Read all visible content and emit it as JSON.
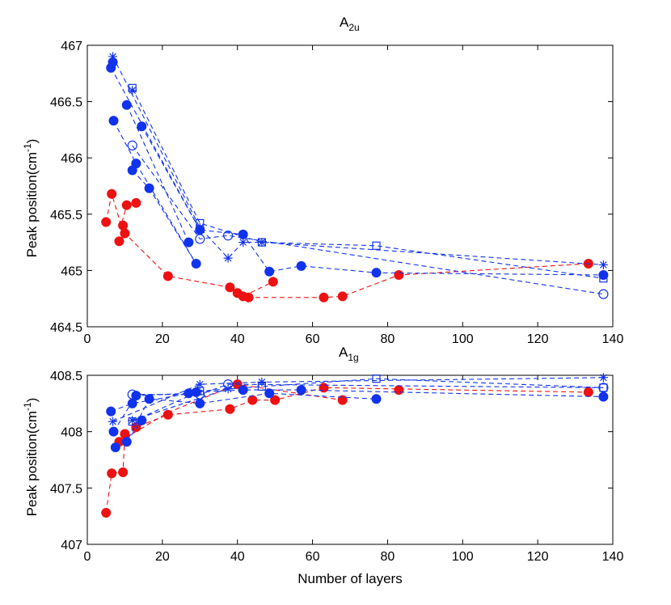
{
  "chart_data": [
    {
      "type": "line",
      "title": "A",
      "title_sub": "2u",
      "xlabel": "",
      "ylabel_base": "Peak position(cm",
      "ylabel_sup": "-1",
      "ylabel_end": ")",
      "xlim": [
        0,
        140
      ],
      "ylim": [
        464.5,
        467
      ],
      "xticks": [
        "0",
        "20",
        "40",
        "60",
        "80",
        "100",
        "120",
        "140"
      ],
      "yticks": [
        "464.5",
        "465",
        "465.5",
        "466",
        "466.5",
        "467"
      ],
      "grid": false,
      "series": [
        {
          "name": "red filled circles",
          "color": "#ee1111",
          "marker": "filled-circle",
          "points": [
            [
              5,
              465.43
            ],
            [
              6.5,
              465.68
            ],
            [
              8.5,
              465.26
            ],
            [
              9.5,
              465.4
            ],
            [
              10,
              465.33
            ],
            [
              10.5,
              465.58
            ],
            [
              13,
              465.6
            ]
          ],
          "lines": [
            [
              [
                5,
                465.43
              ],
              [
                6.5,
                465.68
              ],
              [
                9,
                465.4
              ],
              [
                10.5,
                465.58
              ]
            ],
            [
              [
                8.5,
                465.26
              ],
              [
                10,
                465.33
              ],
              [
                21.5,
                464.95
              ],
              [
                38,
                464.85
              ],
              [
                40,
                464.8
              ],
              [
                41.5,
                464.77
              ],
              [
                43,
                464.76
              ],
              [
                63,
                464.76
              ],
              [
                68,
                464.77
              ],
              [
                83,
                464.96
              ],
              [
                133.5,
                465.06
              ]
            ],
            [
              [
                38,
                464.85
              ],
              [
                41.5,
                464.77
              ],
              [
                49.5,
                464.9
              ]
            ]
          ],
          "extra_points": [
            [
              21.5,
              464.95
            ],
            [
              38,
              464.85
            ],
            [
              40,
              464.8
            ],
            [
              41.5,
              464.77
            ],
            [
              43,
              464.76
            ],
            [
              49.5,
              464.9
            ],
            [
              63,
              464.76
            ],
            [
              68,
              464.77
            ],
            [
              83,
              464.96
            ],
            [
              133.5,
              465.06
            ]
          ]
        },
        {
          "name": "blue filled circles",
          "color": "#1133ee",
          "marker": "filled-circle",
          "points": [
            [
              6.3,
              466.8
            ],
            [
              6.8,
              466.85
            ],
            [
              7,
              466.33
            ],
            [
              10.5,
              466.47
            ],
            [
              12,
              465.89
            ],
            [
              13,
              465.95
            ],
            [
              14.5,
              466.28
            ],
            [
              16.5,
              465.73
            ],
            [
              27,
              465.25
            ],
            [
              29,
              465.06
            ],
            [
              30,
              465.36
            ],
            [
              41.5,
              465.32
            ],
            [
              48.5,
              464.99
            ],
            [
              57,
              465.04
            ],
            [
              77,
              464.98
            ],
            [
              137.5,
              464.96
            ]
          ],
          "lines": [
            [
              [
                6.3,
                466.8
              ],
              [
                30,
                465.36
              ],
              [
                41.5,
                465.32
              ],
              [
                48.5,
                464.99
              ],
              [
                57,
                465.04
              ],
              [
                77,
                464.98
              ],
              [
                137.5,
                464.96
              ]
            ],
            [
              [
                7,
                466.33
              ],
              [
                13,
                465.95
              ],
              [
                29,
                465.06
              ]
            ],
            [
              [
                10.5,
                466.47
              ],
              [
                27,
                465.25
              ]
            ],
            [
              [
                12,
                465.89
              ],
              [
                16.5,
                465.73
              ],
              [
                29,
                465.06
              ]
            ],
            [
              [
                14.5,
                466.28
              ],
              [
                30,
                465.36
              ]
            ]
          ]
        },
        {
          "name": "blue stars",
          "color": "#1133ee",
          "marker": "star",
          "points": [
            [
              6.8,
              466.9
            ],
            [
              12,
              466.6
            ],
            [
              30,
              465.38
            ],
            [
              37.5,
              465.11
            ],
            [
              41.5,
              465.25
            ],
            [
              46.5,
              465.25
            ],
            [
              137.5,
              465.05
            ]
          ],
          "lines": [
            [
              [
                6.8,
                466.9
              ],
              [
                30,
                465.38
              ],
              [
                37.5,
                465.11
              ],
              [
                41.5,
                465.25
              ],
              [
                46.5,
                465.25
              ],
              [
                137.5,
                465.05
              ]
            ]
          ]
        },
        {
          "name": "blue squares",
          "color": "#1133ee",
          "marker": "square",
          "points": [
            [
              12,
              466.62
            ],
            [
              30,
              465.42
            ],
            [
              46.5,
              465.25
            ],
            [
              77,
              465.22
            ],
            [
              137.5,
              464.93
            ]
          ],
          "lines": [
            [
              [
                12,
                466.62
              ],
              [
                30,
                465.42
              ],
              [
                46.5,
                465.25
              ],
              [
                77,
                465.22
              ],
              [
                137.5,
                464.93
              ]
            ]
          ]
        },
        {
          "name": "blue open circles",
          "color": "#1133ee",
          "marker": "open-circle",
          "points": [
            [
              12,
              466.11
            ],
            [
              30,
              465.28
            ],
            [
              37.5,
              465.31
            ],
            [
              137.5,
              464.79
            ]
          ],
          "lines": [
            [
              [
                12,
                466.11
              ],
              [
                30,
                465.28
              ],
              [
                37.5,
                465.31
              ],
              [
                137.5,
                464.79
              ]
            ]
          ]
        }
      ]
    },
    {
      "type": "line",
      "title": "A",
      "title_sub": "1g",
      "xlabel": "Number of layers",
      "ylabel_base": "Peak position(cm",
      "ylabel_sup": "-1",
      "ylabel_end": ")",
      "xlim": [
        0,
        140
      ],
      "ylim": [
        407,
        408.5
      ],
      "xticks": [
        "0",
        "20",
        "40",
        "60",
        "80",
        "100",
        "120",
        "140"
      ],
      "yticks": [
        "407",
        "407.5",
        "408",
        "408.5"
      ],
      "grid": false,
      "series": [
        {
          "name": "red filled circles",
          "color": "#ee1111",
          "marker": "filled-circle",
          "points": [
            [
              5,
              407.28
            ],
            [
              6.5,
              407.63
            ],
            [
              8.5,
              407.91
            ],
            [
              9.5,
              407.64
            ],
            [
              10,
              407.98
            ],
            [
              13,
              408.04
            ],
            [
              21.5,
              408.15
            ],
            [
              38,
              408.2
            ],
            [
              40,
              408.42
            ],
            [
              44,
              408.28
            ],
            [
              50,
              408.28
            ],
            [
              63,
              408.39
            ],
            [
              68,
              408.28
            ],
            [
              83,
              408.37
            ],
            [
              133.5,
              408.35
            ]
          ],
          "lines": [
            [
              [
                5,
                407.28
              ],
              [
                6.5,
                407.63
              ],
              [
                9.5,
                407.64
              ],
              [
                10,
                407.98
              ],
              [
                13,
                408.04
              ],
              [
                21.5,
                408.15
              ],
              [
                38,
                408.2
              ],
              [
                44,
                408.28
              ],
              [
                50,
                408.28
              ],
              [
                63,
                408.39
              ],
              [
                133.5,
                408.35
              ]
            ],
            [
              [
                8.5,
                407.91
              ],
              [
                21.5,
                408.17
              ],
              [
                40,
                408.42
              ],
              [
                68,
                408.28
              ]
            ]
          ]
        },
        {
          "name": "blue filled circles",
          "color": "#1133ee",
          "marker": "filled-circle",
          "points": [
            [
              6.3,
              408.18
            ],
            [
              7,
              408.0
            ],
            [
              7.5,
              407.86
            ],
            [
              10.5,
              407.91
            ],
            [
              12,
              408.25
            ],
            [
              13,
              408.32
            ],
            [
              14.5,
              408.1
            ],
            [
              16.5,
              408.29
            ],
            [
              27,
              408.34
            ],
            [
              29,
              408.35
            ],
            [
              30,
              408.25
            ],
            [
              41.5,
              408.37
            ],
            [
              48.5,
              408.34
            ],
            [
              57,
              408.37
            ],
            [
              77,
              408.29
            ],
            [
              137.5,
              408.31
            ]
          ],
          "lines": [
            [
              [
                6.3,
                408.18
              ],
              [
                12,
                408.25
              ],
              [
                29,
                408.35
              ],
              [
                41.5,
                408.37
              ],
              [
                57,
                408.37
              ],
              [
                137.5,
                408.31
              ]
            ],
            [
              [
                7,
                408.0
              ],
              [
                13,
                408.32
              ],
              [
                27,
                408.34
              ]
            ],
            [
              [
                7.5,
                407.86
              ],
              [
                10.5,
                407.91
              ],
              [
                16.5,
                408.29
              ],
              [
                30,
                408.25
              ],
              [
                48.5,
                408.34
              ],
              [
                77,
                408.29
              ]
            ],
            [
              [
                10.5,
                407.91
              ],
              [
                14.5,
                408.1
              ]
            ]
          ]
        },
        {
          "name": "blue stars",
          "color": "#1133ee",
          "marker": "star",
          "points": [
            [
              6.8,
              408.09
            ],
            [
              12,
              408.1
            ],
            [
              30,
              408.42
            ],
            [
              37.5,
              408.38
            ],
            [
              46.5,
              408.44
            ],
            [
              137.5,
              408.48
            ]
          ],
          "lines": [
            [
              [
                6.8,
                408.09
              ],
              [
                30,
                408.42
              ],
              [
                46.5,
                408.44
              ],
              [
                137.5,
                408.48
              ]
            ],
            [
              [
                12,
                408.1
              ],
              [
                37.5,
                408.38
              ]
            ]
          ]
        },
        {
          "name": "blue squares",
          "color": "#1133ee",
          "marker": "square",
          "points": [
            [
              12,
              408.09
            ],
            [
              30,
              408.36
            ],
            [
              46.5,
              408.4
            ],
            [
              77,
              408.47
            ],
            [
              137.5,
              408.39
            ]
          ],
          "lines": [
            [
              [
                12,
                408.09
              ],
              [
                30,
                408.36
              ],
              [
                46.5,
                408.4
              ],
              [
                77,
                408.47
              ],
              [
                137.5,
                408.39
              ]
            ]
          ]
        },
        {
          "name": "blue open circles",
          "color": "#1133ee",
          "marker": "open-circle",
          "points": [
            [
              12,
              408.33
            ],
            [
              30,
              408.33
            ],
            [
              37.5,
              408.42
            ],
            [
              137.5,
              408.39
            ]
          ],
          "lines": [
            [
              [
                12,
                408.33
              ],
              [
                30,
                408.33
              ],
              [
                37.5,
                408.42
              ],
              [
                137.5,
                408.39
              ]
            ]
          ]
        }
      ]
    }
  ]
}
